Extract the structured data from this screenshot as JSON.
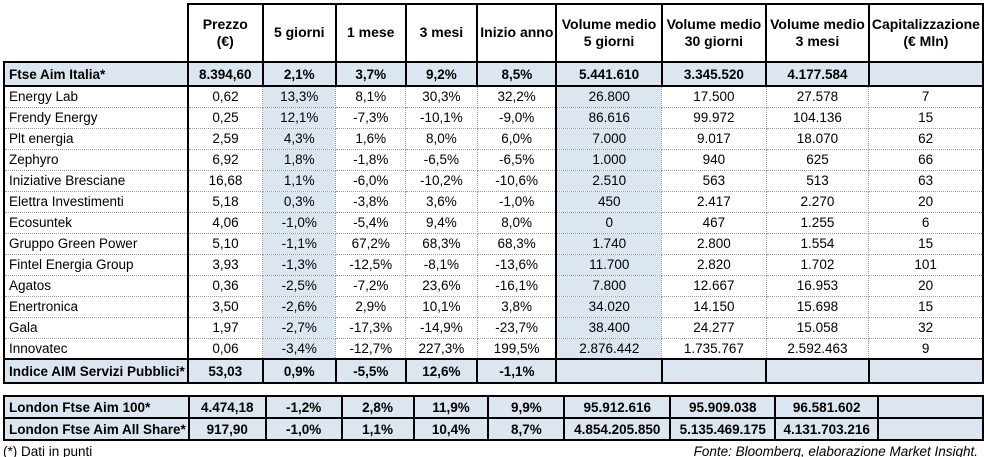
{
  "table": {
    "columns": [
      {
        "l1": "Prezzo",
        "l2": "(€)"
      },
      {
        "l1": "5 giorni",
        "l2": ""
      },
      {
        "l1": "1 mese",
        "l2": ""
      },
      {
        "l1": "3 mesi",
        "l2": ""
      },
      {
        "l1": "Inizio anno",
        "l2": ""
      },
      {
        "l1": "Volume medio",
        "l2": "5 giorni"
      },
      {
        "l1": "Volume medio",
        "l2": "30 giorni"
      },
      {
        "l1": "Volume medio",
        "l2": "3 mesi"
      },
      {
        "l1": "Capitalizzazione",
        "l2": "(€ Mln)"
      }
    ],
    "rows": [
      {
        "name": "Ftse Aim Italia*",
        "type": "index",
        "values": [
          "8.394,60",
          "2,1%",
          "3,7%",
          "9,2%",
          "8,5%",
          "5.441.610",
          "3.345.520",
          "4.177.584",
          ""
        ]
      },
      {
        "name": "Energy Lab",
        "type": "stock",
        "values": [
          "0,62",
          "13,3%",
          "8,1%",
          "30,3%",
          "32,2%",
          "26.800",
          "17.500",
          "27.578",
          "7"
        ]
      },
      {
        "name": "Frendy Energy",
        "type": "stock",
        "values": [
          "0,25",
          "12,1%",
          "-7,3%",
          "-10,1%",
          "-9,0%",
          "86.616",
          "99.972",
          "104.136",
          "15"
        ]
      },
      {
        "name": "Plt energia",
        "type": "stock",
        "values": [
          "2,59",
          "4,3%",
          "1,6%",
          "8,0%",
          "6,0%",
          "7.000",
          "9.017",
          "18.070",
          "62"
        ]
      },
      {
        "name": "Zephyro",
        "type": "stock",
        "values": [
          "6,92",
          "1,8%",
          "-1,8%",
          "-6,5%",
          "-6,5%",
          "1.000",
          "940",
          "625",
          "66"
        ]
      },
      {
        "name": "Iniziative Bresciane",
        "type": "stock",
        "values": [
          "16,68",
          "1,1%",
          "-6,0%",
          "-10,2%",
          "-10,6%",
          "2.510",
          "563",
          "513",
          "63"
        ]
      },
      {
        "name": "Elettra Investimenti",
        "type": "stock",
        "values": [
          "5,18",
          "0,3%",
          "-3,8%",
          "3,6%",
          "-1,0%",
          "450",
          "2.417",
          "2.270",
          "20"
        ]
      },
      {
        "name": "Ecosuntek",
        "type": "stock",
        "values": [
          "4,06",
          "-1,0%",
          "-5,4%",
          "9,4%",
          "8,0%",
          "0",
          "467",
          "1.255",
          "6"
        ]
      },
      {
        "name": "Gruppo Green Power",
        "type": "stock",
        "values": [
          "5,10",
          "-1,1%",
          "67,2%",
          "68,3%",
          "68,3%",
          "1.740",
          "2.800",
          "1.554",
          "15"
        ]
      },
      {
        "name": "Fintel Energia Group",
        "type": "stock",
        "values": [
          "3,93",
          "-1,3%",
          "-12,5%",
          "-8,1%",
          "-13,6%",
          "11.700",
          "2.820",
          "1.702",
          "101"
        ]
      },
      {
        "name": "Agatos",
        "type": "stock",
        "values": [
          "0,36",
          "-2,5%",
          "-7,2%",
          "23,6%",
          "-16,1%",
          "7.800",
          "12.667",
          "16.953",
          "20"
        ]
      },
      {
        "name": "Enertronica",
        "type": "stock",
        "values": [
          "3,50",
          "-2,6%",
          "2,9%",
          "10,1%",
          "3,8%",
          "34.020",
          "14.150",
          "15.698",
          "15"
        ]
      },
      {
        "name": "Gala",
        "type": "stock",
        "values": [
          "1,97",
          "-2,7%",
          "-17,3%",
          "-14,9%",
          "-23,7%",
          "38.400",
          "24.277",
          "15.058",
          "32"
        ]
      },
      {
        "name": "Innovatec",
        "type": "stock",
        "values": [
          "0,06",
          "-3,4%",
          "-12,7%",
          "227,3%",
          "199,5%",
          "2.876.442",
          "1.735.767",
          "2.592.463",
          "9"
        ]
      },
      {
        "name": "Indice AIM Servizi Pubblici*",
        "type": "index",
        "values": [
          "53,03",
          "0,9%",
          "-5,5%",
          "12,6%",
          "-1,1%",
          "",
          "",
          "",
          ""
        ]
      }
    ]
  },
  "london": {
    "rows": [
      {
        "name": "London Ftse Aim 100*",
        "values": [
          "4.474,18",
          "-1,2%",
          "2,8%",
          "11,9%",
          "9,9%",
          "95.912.616",
          "95.909.038",
          "96.581.602",
          ""
        ]
      },
      {
        "name": "London Ftse Aim All Share*",
        "values": [
          "917,90",
          "-1,0%",
          "1,1%",
          "10,4%",
          "8,7%",
          "4.854.205.850",
          "5.135.469.175",
          "4.131.703.216",
          ""
        ]
      }
    ]
  },
  "footnotes": {
    "left": "(*) Dati in punti",
    "right": "Fonte: Bloomberg, elaborazione Market Insight."
  },
  "colors": {
    "shade": "#dce6f1",
    "border": "#000000",
    "dotted_border": "#9a9a9a"
  }
}
